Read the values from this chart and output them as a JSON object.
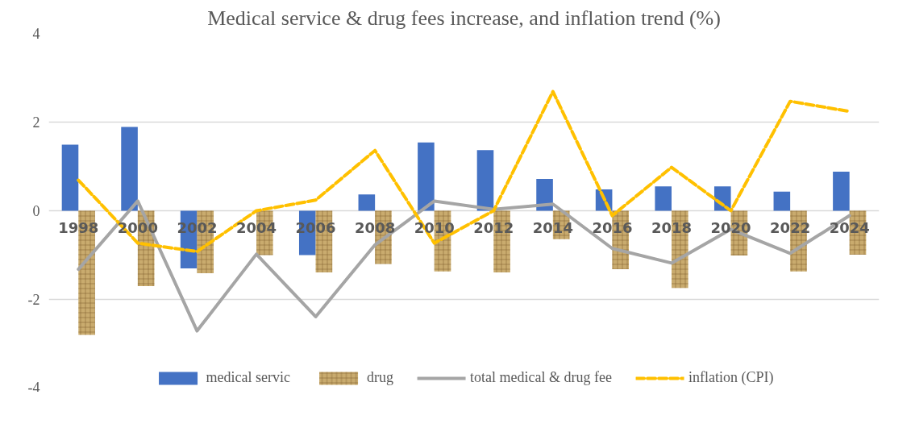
{
  "chart_data": {
    "type": "bar",
    "title": "Medical service & drug fees increase, and inflation trend (%)",
    "categories": [
      "1998",
      "2000",
      "2002",
      "2004",
      "2006",
      "2008",
      "2010",
      "2012",
      "2014",
      "2016",
      "2018",
      "2020",
      "2022",
      "2024"
    ],
    "series": [
      {
        "name": "medical servic",
        "color": "#4472c4",
        "values": [
          1.49,
          1.89,
          -1.3,
          0,
          -1.0,
          0.37,
          1.54,
          1.37,
          0.72,
          0.48,
          0.55,
          0.55,
          0.43,
          0.88
        ]
      },
      {
        "name": "drug",
        "color": "#c9ab6e",
        "values": [
          -2.8,
          -1.7,
          -1.41,
          -1.0,
          -1.39,
          -1.2,
          -1.37,
          -1.39,
          -0.64,
          -1.32,
          -1.74,
          -1.01,
          -1.37,
          -0.99
        ]
      },
      {
        "name": "total medical & drug fee",
        "type": "line",
        "color": "#a5a5a5",
        "line_style": "solid",
        "values": [
          -1.32,
          0.22,
          -2.71,
          -0.98,
          -2.39,
          -0.77,
          0.22,
          0.03,
          0.15,
          -0.85,
          -1.18,
          -0.42,
          -0.96,
          -0.11
        ]
      },
      {
        "name": "inflation (CPI)",
        "type": "line",
        "color": "#ffc000",
        "line_style": "dashed",
        "values": [
          0.69,
          -0.73,
          -0.92,
          0,
          0.24,
          1.36,
          -0.73,
          0,
          2.69,
          -0.11,
          0.98,
          0,
          2.47,
          2.24
        ]
      }
    ],
    "ylim": [
      -4,
      4
    ],
    "yticks": [
      -4,
      -2,
      0,
      2,
      4
    ],
    "grid": "y",
    "legend": "bottom"
  }
}
